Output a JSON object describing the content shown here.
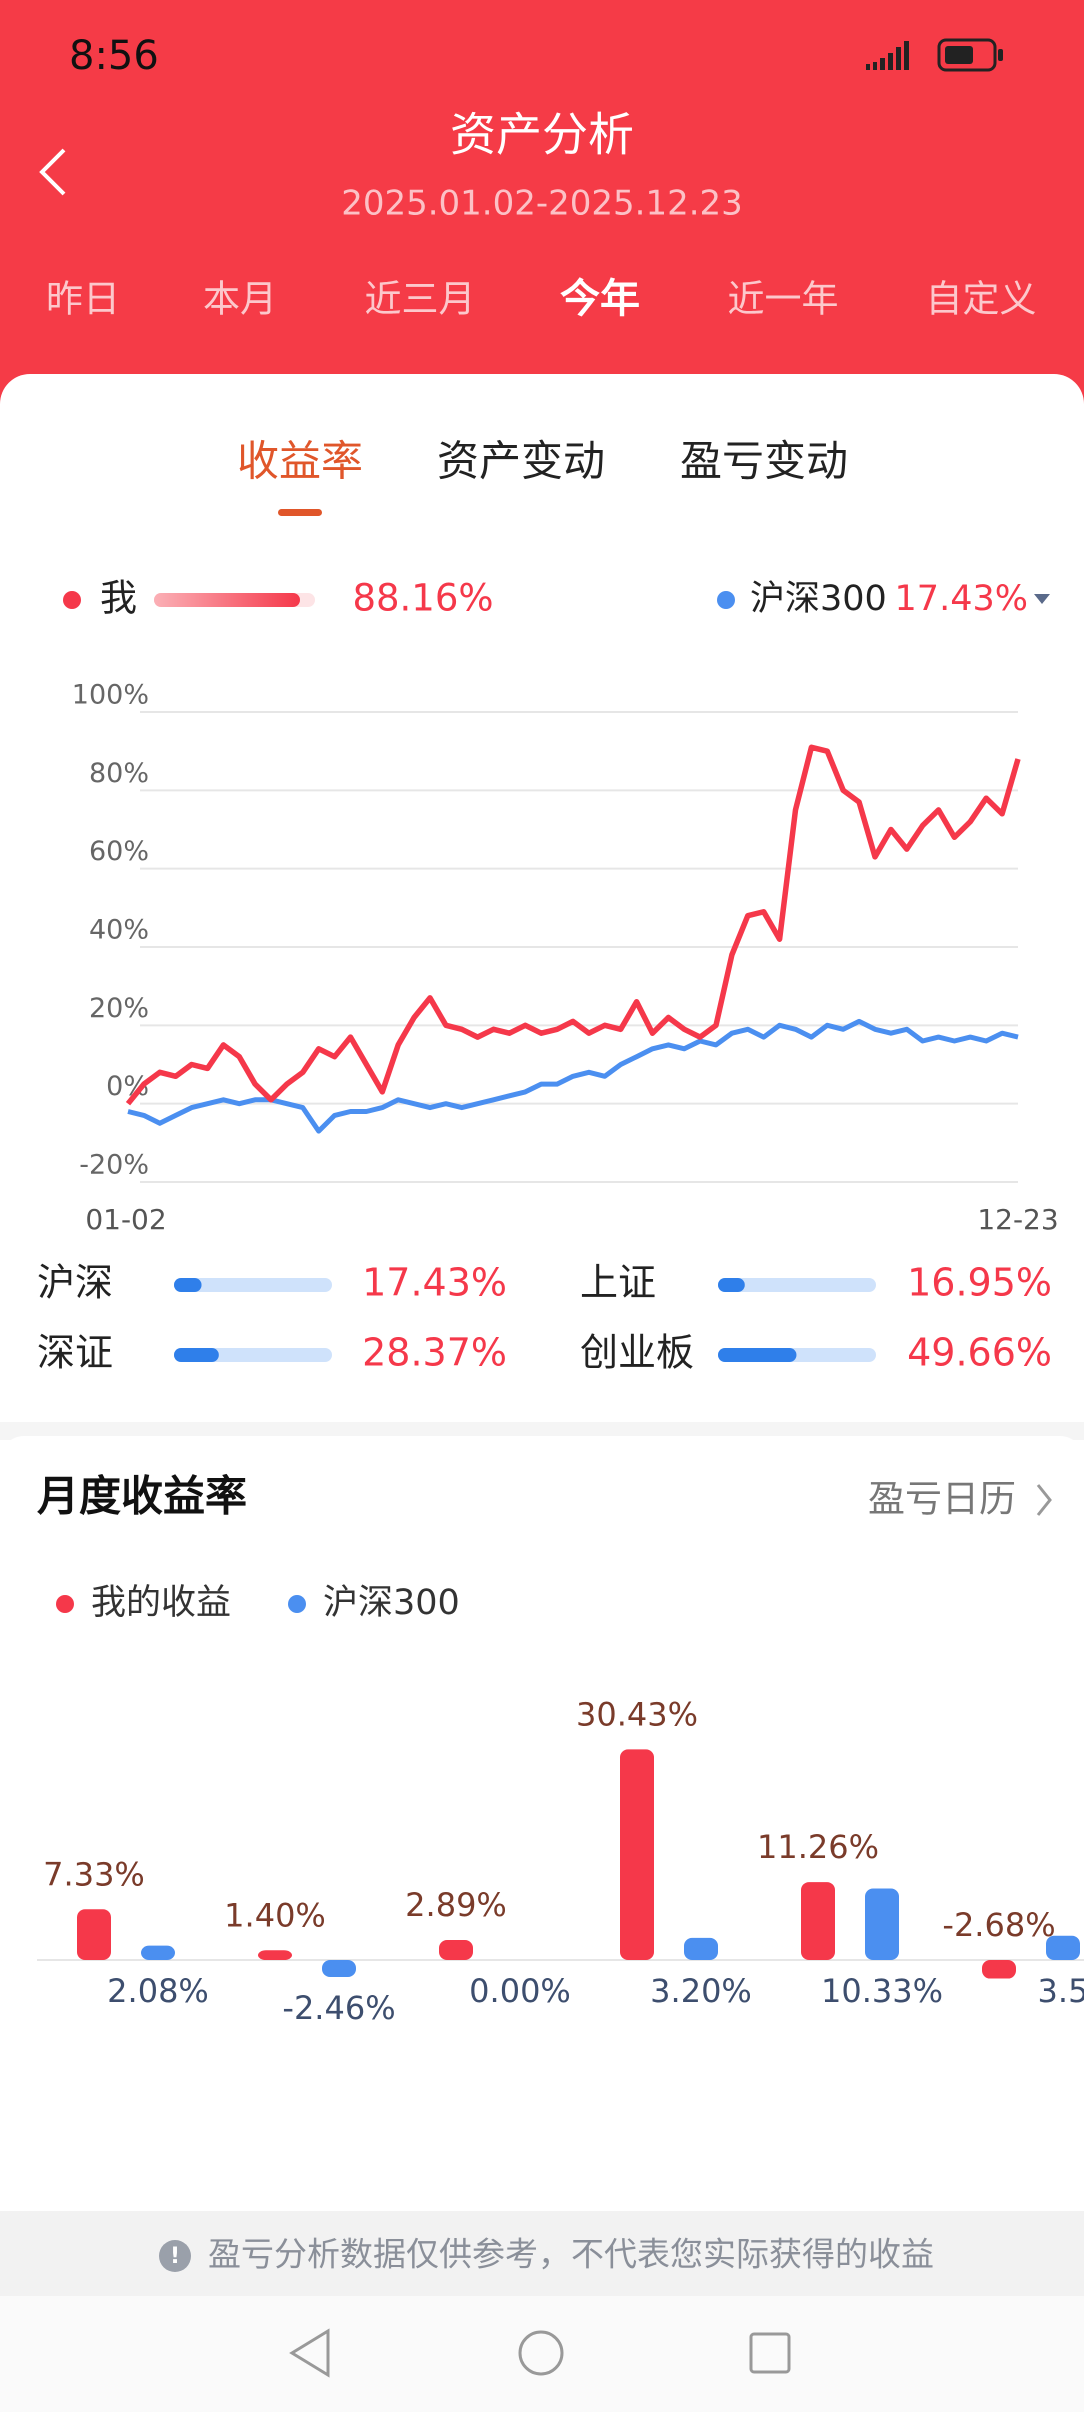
{
  "status_bar": {
    "time": "8:56"
  },
  "header": {
    "title": "资产分析",
    "date_range": "2025.01.02-2025.12.23"
  },
  "period_tabs": {
    "items": [
      "昨日",
      "本月",
      "近三月",
      "今年",
      "近一年",
      "自定义"
    ],
    "selected": 3
  },
  "sub_tabs": {
    "items": [
      "收益率",
      "资产变动",
      "盈亏变动"
    ],
    "selected": 0
  },
  "return_chart": {
    "type": "line",
    "series": [
      {
        "name": "我",
        "color": "#f5384a",
        "summary": "88.16%",
        "values": [
          0,
          5,
          8,
          7,
          10,
          9,
          15,
          12,
          5,
          1,
          5,
          8,
          14,
          12,
          17,
          10,
          3,
          15,
          22,
          27,
          20,
          19,
          17,
          19,
          18,
          20,
          18,
          19,
          21,
          18,
          20,
          19,
          26,
          18,
          22,
          19,
          17,
          20,
          38,
          48,
          49,
          42,
          75,
          91,
          90,
          80,
          77,
          63,
          70,
          65,
          71,
          75,
          68,
          72,
          78,
          74,
          88
        ]
      },
      {
        "name": "沪深300",
        "color": "#4b8ff0",
        "summary": "17.43%",
        "values": [
          -2,
          -3,
          -5,
          -3,
          -1,
          0,
          1,
          0,
          1,
          1,
          0,
          -1,
          -7,
          -3,
          -2,
          -2,
          -1,
          1,
          0,
          -1,
          0,
          -1,
          0,
          1,
          2,
          3,
          5,
          5,
          7,
          8,
          7,
          10,
          12,
          14,
          15,
          14,
          16,
          15,
          18,
          19,
          17,
          20,
          19,
          17,
          20,
          19,
          21,
          19,
          18,
          19,
          16,
          17,
          16,
          17,
          16,
          18,
          17
        ]
      }
    ],
    "ylim": [
      -20,
      100
    ],
    "yticks": [
      {
        "value": 100,
        "label": "100%"
      },
      {
        "value": 80,
        "label": "80%"
      },
      {
        "value": 60,
        "label": "60%"
      },
      {
        "value": 40,
        "label": "40%"
      },
      {
        "value": 20,
        "label": "20%"
      },
      {
        "value": 0,
        "label": "0%"
      },
      {
        "value": -20,
        "label": "-20%"
      }
    ],
    "x_labels": [
      "01-02",
      "12-23"
    ],
    "grid": true
  },
  "indices": {
    "xlim": [
      0,
      100
    ],
    "items": [
      {
        "name": "沪深",
        "value": 17.43,
        "label": "17.43%"
      },
      {
        "name": "上证",
        "value": 16.95,
        "label": "16.95%"
      },
      {
        "name": "深证",
        "value": 28.37,
        "label": "28.37%"
      },
      {
        "name": "创业板",
        "value": 49.66,
        "label": "49.66%"
      }
    ]
  },
  "monthly_chart": {
    "type": "bar",
    "title": "月度收益率",
    "link": "盈亏日历",
    "series": [
      {
        "name": "我的收益",
        "color": "#f5384a",
        "values": [
          7.33,
          1.4,
          2.89,
          30.43,
          11.26,
          -2.68
        ],
        "value_labels": [
          "7.33%",
          "1.40%",
          "2.89%",
          "30.43%",
          "11.26%",
          "-2.68%"
        ]
      },
      {
        "name": "沪深300",
        "color": "#4b8ff0",
        "values": [
          2.08,
          -2.46,
          0.0,
          3.2,
          10.33,
          3.5
        ],
        "value_labels": [
          "2.08%",
          "-2.46%",
          "0.00%",
          "3.20%",
          "10.33%",
          "3.5"
        ]
      }
    ]
  },
  "footer": {
    "notice": "盈亏分析数据仅供参考，不代表您实际获得的收益"
  }
}
